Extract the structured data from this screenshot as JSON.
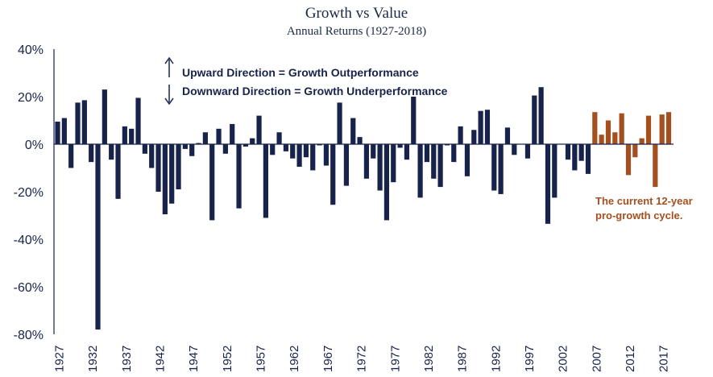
{
  "chart_data": {
    "type": "bar",
    "title": "Growth vs Value",
    "subtitle": "Annual Returns (1927-2018)",
    "xlabel": "",
    "ylabel": "",
    "ylim": [
      -80,
      40
    ],
    "y_ticks": [
      "40%",
      "20%",
      "0%",
      "-20%",
      "-40%",
      "-60%",
      "-80%"
    ],
    "y_tick_values": [
      40,
      20,
      0,
      -20,
      -40,
      -60,
      -80
    ],
    "x_tick_labels": [
      "1927",
      "1932",
      "1937",
      "1942",
      "1947",
      "1952",
      "1957",
      "1962",
      "1967",
      "1972",
      "1977",
      "1982",
      "1987",
      "1992",
      "1997",
      "2002",
      "2007",
      "2012",
      "2017"
    ],
    "x": [
      1927,
      1928,
      1929,
      1930,
      1931,
      1932,
      1933,
      1934,
      1935,
      1936,
      1937,
      1938,
      1939,
      1940,
      1941,
      1942,
      1943,
      1944,
      1945,
      1946,
      1947,
      1948,
      1949,
      1950,
      1951,
      1952,
      1953,
      1954,
      1955,
      1956,
      1957,
      1958,
      1959,
      1960,
      1961,
      1962,
      1963,
      1964,
      1965,
      1966,
      1967,
      1968,
      1969,
      1970,
      1971,
      1972,
      1973,
      1974,
      1975,
      1976,
      1977,
      1978,
      1979,
      1980,
      1981,
      1982,
      1983,
      1984,
      1985,
      1986,
      1987,
      1988,
      1989,
      1990,
      1991,
      1992,
      1993,
      1994,
      1995,
      1996,
      1997,
      1998,
      1999,
      2000,
      2001,
      2002,
      2003,
      2004,
      2005,
      2006,
      2007,
      2008,
      2009,
      2010,
      2011,
      2012,
      2013,
      2014,
      2015,
      2016,
      2017,
      2018
    ],
    "series": [
      {
        "values": [
          9.5,
          11,
          -10,
          17.5,
          18.5,
          -7.5,
          -78,
          23,
          -6.5,
          -23,
          7.5,
          6.5,
          19.5,
          -4,
          -10,
          -20,
          -29.5,
          -25,
          -19,
          -2,
          -5,
          0.5,
          5,
          -32,
          6.5,
          -4,
          8.5,
          -27,
          -1,
          2.5,
          12,
          -31,
          -4.5,
          5,
          -3,
          -6,
          -9.5,
          -5.5,
          -11,
          -0.5,
          -9,
          -25.5,
          17.5,
          -17.5,
          11,
          3,
          -14.5,
          -6,
          -19.5,
          -32,
          -16,
          -1.5,
          -6.5,
          20,
          -22.5,
          -7.5,
          -14.5,
          -18,
          -0.5,
          -7.5,
          7.5,
          -13.5,
          6,
          14,
          14.5,
          -19.5,
          -21,
          7,
          -4.5,
          0,
          -6,
          20.5,
          24,
          -33.5,
          -22.5,
          0,
          -6.5,
          -11,
          -7,
          -12.5,
          13.5,
          4,
          10,
          5,
          13,
          -13,
          -5.5,
          2.5,
          12,
          -18,
          12.5,
          13.5
        ],
        "colors_by_period": {
          "1927-2006": "#17234a",
          "2007-2018": "#a54f1f"
        }
      }
    ],
    "annotations": {
      "up_label": "Upward Direction = Growth Outperformance",
      "down_label": "Downward Direction = Growth Underperformance",
      "cycle_note_line1": "The current 12-year",
      "cycle_note_line2": "pro-growth cycle."
    },
    "grid": false,
    "legend": "none"
  },
  "colors": {
    "navy": "#17234a",
    "orange": "#a54f1f",
    "axis": "#17234a"
  }
}
